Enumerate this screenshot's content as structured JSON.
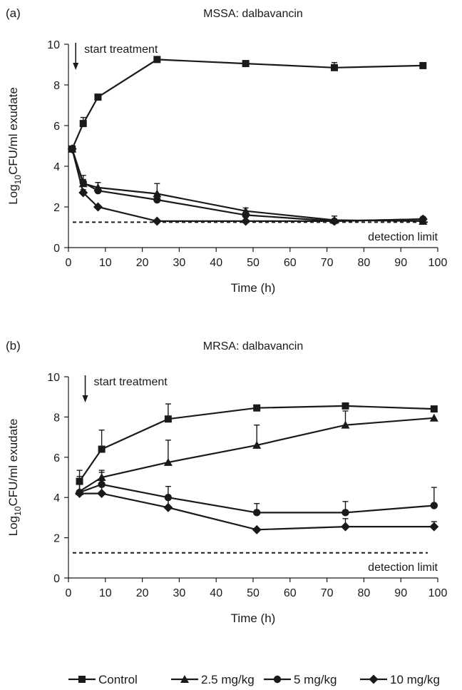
{
  "legend": {
    "placement": "bottom",
    "entries": [
      {
        "name": "Control",
        "marker": "square"
      },
      {
        "name": "2.5 mg/kg",
        "marker": "triangle"
      },
      {
        "name": "5 mg/kg",
        "marker": "circle"
      },
      {
        "name": "10 mg/kg",
        "marker": "diamond"
      }
    ]
  },
  "chart_data": [
    {
      "type": "line",
      "panel_label": "(a)",
      "title": "MSSA: dalbavancin",
      "xlabel": "Time (h)",
      "ylabel_main": "Log",
      "ylabel_sub": "10",
      "ylabel_rest": "CFU/ml exudate",
      "xlim": [
        0,
        100
      ],
      "ylim": [
        0,
        10
      ],
      "xticks": [
        0,
        10,
        20,
        30,
        40,
        50,
        60,
        70,
        80,
        90,
        100
      ],
      "yticks": [
        0,
        2,
        4,
        6,
        8,
        10
      ],
      "grid": false,
      "detection_limit": {
        "value": 1.25,
        "label": "detection limit"
      },
      "treatment_marker": {
        "x": 1,
        "label": "start treatment"
      },
      "series": [
        {
          "name": "Control",
          "marker": "square",
          "x": [
            1,
            4,
            8,
            24,
            48,
            72,
            96
          ],
          "y": [
            4.85,
            6.1,
            7.4,
            9.25,
            9.05,
            8.85,
            8.95
          ],
          "err": [
            0.1,
            0.3,
            0.1,
            0.05,
            0.1,
            0.25,
            0.05
          ]
        },
        {
          "name": "2.5 mg/kg",
          "marker": "triangle",
          "x": [
            1,
            4,
            8,
            24,
            48,
            72,
            96
          ],
          "y": [
            4.85,
            3.15,
            2.95,
            2.65,
            1.8,
            1.35,
            1.3
          ],
          "err": [
            0.1,
            0.2,
            0.25,
            0.5,
            0.15,
            0.2,
            0.05
          ]
        },
        {
          "name": "5 mg/kg",
          "marker": "circle",
          "x": [
            1,
            4,
            8,
            24,
            48,
            72,
            96
          ],
          "y": [
            4.85,
            3.2,
            2.8,
            2.35,
            1.6,
            1.3,
            1.4
          ],
          "err": [
            0.1,
            0.35,
            0.4,
            0.3,
            0.1,
            0.1,
            0.05
          ]
        },
        {
          "name": "10 mg/kg",
          "marker": "diamond",
          "x": [
            1,
            4,
            8,
            24,
            48,
            72,
            96
          ],
          "y": [
            4.85,
            2.7,
            2.0,
            1.3,
            1.3,
            1.3,
            1.4
          ],
          "err": [
            0.1,
            0.15,
            0.05,
            0.05,
            0.05,
            0.05,
            0.05
          ]
        }
      ]
    },
    {
      "type": "line",
      "panel_label": "(b)",
      "title": "MRSA: dalbavancin",
      "xlabel": "Time (h)",
      "ylabel_main": "Log",
      "ylabel_sub": "10",
      "ylabel_rest": "CFU/ml exudate",
      "xlim": [
        0,
        100
      ],
      "ylim": [
        0,
        10
      ],
      "xticks": [
        0,
        10,
        20,
        30,
        40,
        50,
        60,
        70,
        80,
        90,
        100
      ],
      "yticks": [
        0,
        2,
        4,
        6,
        8,
        10
      ],
      "grid": false,
      "detection_limit": {
        "value": 1.25,
        "label": "detection limit"
      },
      "treatment_marker": {
        "x": 3,
        "label": "start treatment"
      },
      "series": [
        {
          "name": "Control",
          "marker": "square",
          "x": [
            3,
            9,
            27,
            51,
            75,
            99
          ],
          "y": [
            4.8,
            6.4,
            7.9,
            8.45,
            8.55,
            8.4
          ],
          "err": [
            0.55,
            0.95,
            0.75,
            0.05,
            0.05,
            0.05
          ]
        },
        {
          "name": "2.5 mg/kg",
          "marker": "triangle",
          "x": [
            3,
            9,
            27,
            51,
            75,
            99
          ],
          "y": [
            4.3,
            5.0,
            5.75,
            6.6,
            7.6,
            7.95
          ],
          "err": [
            0.75,
            0.35,
            1.1,
            1.0,
            0.7,
            0.05
          ]
        },
        {
          "name": "5 mg/kg",
          "marker": "circle",
          "x": [
            3,
            9,
            27,
            51,
            75,
            99
          ],
          "y": [
            4.25,
            4.65,
            4.0,
            3.25,
            3.25,
            3.6
          ],
          "err": [
            0.7,
            0.6,
            0.55,
            0.45,
            0.55,
            0.9
          ]
        },
        {
          "name": "10 mg/kg",
          "marker": "diamond",
          "x": [
            3,
            9,
            27,
            51,
            75,
            99
          ],
          "y": [
            4.2,
            4.2,
            3.5,
            2.4,
            2.55,
            2.55
          ],
          "err": [
            0.05,
            0.35,
            0.5,
            0.05,
            0.4,
            0.25
          ]
        }
      ]
    }
  ]
}
